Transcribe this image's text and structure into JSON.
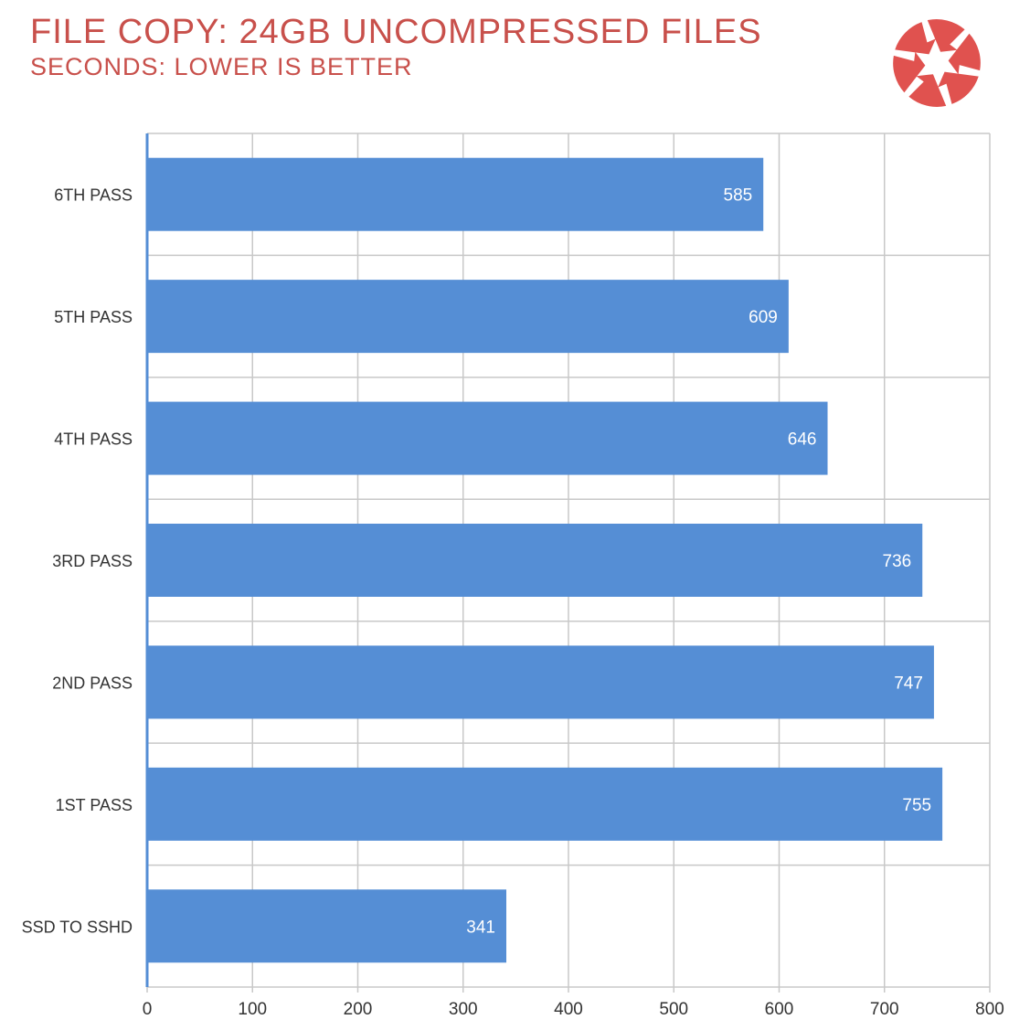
{
  "header": {
    "title": "FILE COPY: 24GB UNCOMPRESSED FILES",
    "subtitle": "SECONDS: LOWER IS BETTER"
  },
  "logo": {
    "icon": "aperture-logo-icon",
    "color": "#e0524f"
  },
  "colors": {
    "bar": "#558ed5",
    "grid": "#c8c8c8",
    "axis": "#558ed5",
    "title": "#c8504b",
    "label": "#333333"
  },
  "chart_data": {
    "type": "bar",
    "orientation": "horizontal",
    "title": "FILE COPY: 24GB UNCOMPRESSED FILES",
    "subtitle": "SECONDS: LOWER IS BETTER",
    "categories": [
      "6TH PASS",
      "5TH PASS",
      "4TH PASS",
      "3RD PASS",
      "2ND PASS",
      "1ST PASS",
      "SSD TO SSHD"
    ],
    "values": [
      585,
      609,
      646,
      736,
      747,
      755,
      341
    ],
    "xlim": [
      0,
      800
    ],
    "xticks": [
      0,
      100,
      200,
      300,
      400,
      500,
      600,
      700,
      800
    ],
    "grid": true,
    "legend": "none",
    "data_labels": "inside-end"
  }
}
